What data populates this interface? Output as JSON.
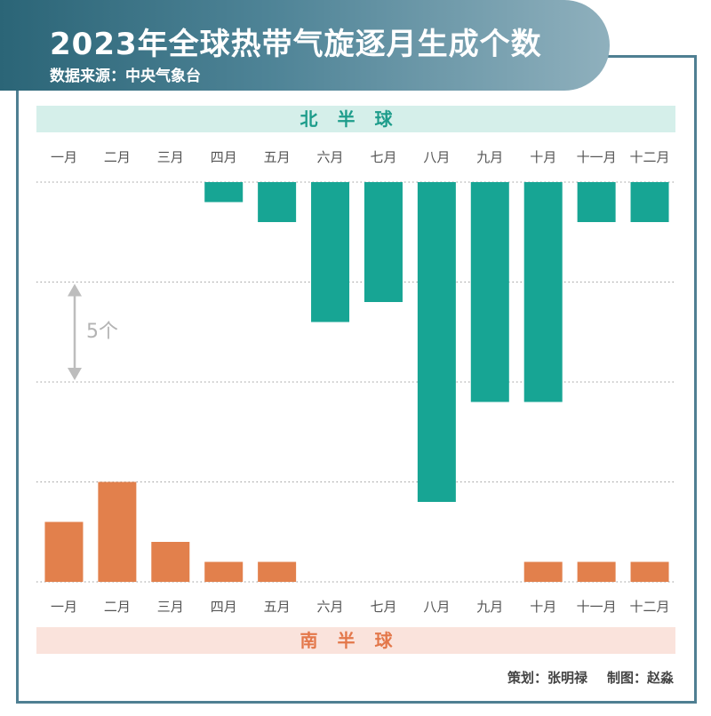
{
  "header": {
    "title": "2023年全球热带气旋逐月生成个数",
    "source": "数据来源：中央气象台"
  },
  "bands": {
    "north": "北半球",
    "south": "南半球"
  },
  "scale": {
    "label": "5个",
    "value": 5
  },
  "credits": {
    "planner": "策划：张明禄",
    "designer": "制图：赵淼"
  },
  "colors": {
    "north_bar": "#17a594",
    "south_bar": "#e2804c",
    "header": "#2b6577"
  },
  "chart_data": {
    "type": "bar",
    "categories": [
      "一月",
      "二月",
      "三月",
      "四月",
      "五月",
      "六月",
      "七月",
      "八月",
      "九月",
      "十月",
      "十一月",
      "十二月"
    ],
    "series": [
      {
        "name": "北半球",
        "values": [
          0,
          0,
          0,
          1,
          2,
          7,
          6,
          16,
          11,
          11,
          2,
          2
        ]
      },
      {
        "name": "南半球",
        "values": [
          3,
          5,
          2,
          1,
          1,
          0,
          0,
          0,
          0,
          1,
          1,
          1
        ]
      }
    ],
    "title": "2023年全球热带气旋逐月生成个数",
    "gridlines_every": 5,
    "grid": true
  }
}
